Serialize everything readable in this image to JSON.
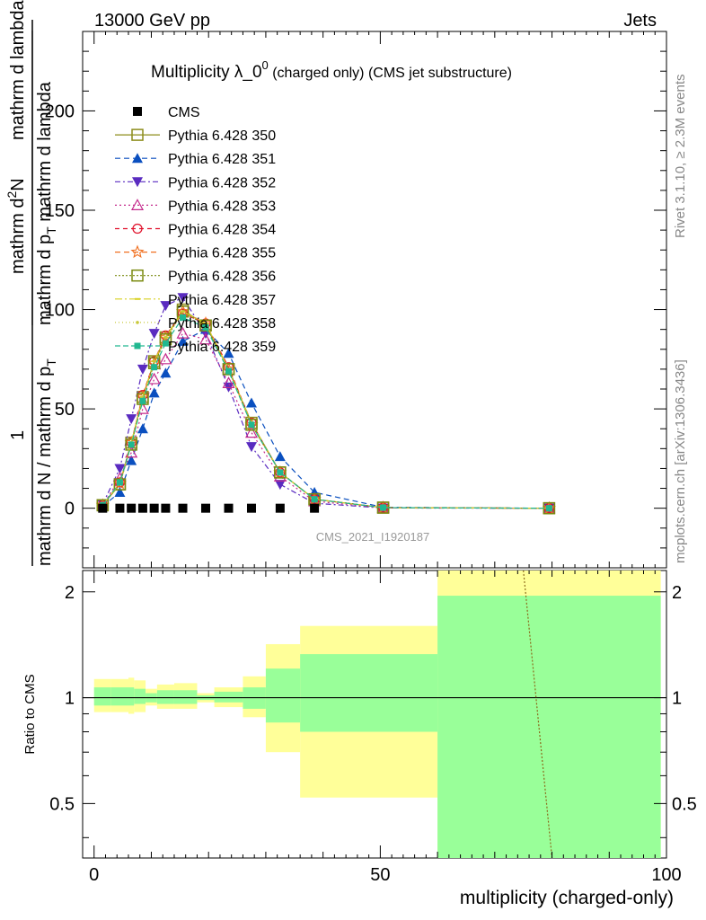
{
  "header": {
    "energy": "13000 GeV pp",
    "category": "Jets"
  },
  "title_main": "Multiplicity λ_0",
  "title_sup": "0",
  "title_suffix": " (charged only) (CMS jet substructure)",
  "side_texts": {
    "rivet": "Rivet 3.1.10, ≥ 2.3M events",
    "mcplots": "mcplots.cern.ch [arXiv:1306.3436]"
  },
  "watermark": "CMS_2021_I1920187",
  "ylabel_top": {
    "one": "1",
    "num_left": "mathrm d N / mathrm d p",
    "num_sub": "T",
    "num_right": "mathrm d lambda",
    "big_num": "mathrm d",
    "big_sup": "2",
    "big_N": "N",
    "big_den": "mathrm d p",
    "big_den_sub": "T",
    "big_den_right": "mathrm d lambda"
  },
  "ylabel_ratio": "Ratio to CMS",
  "xlabel": "multiplicity (charged-only)",
  "colors": {
    "cms": "#000000",
    "p350": "#8c8c1a",
    "p351": "#0a4fbf",
    "p352": "#5a2bc0",
    "p353": "#c42a8c",
    "p354": "#e0102a",
    "p355": "#f07020",
    "p356": "#7a8a10",
    "p357": "#d8d020",
    "p358": "#c8c83a",
    "p359": "#20b890",
    "band_outer": "#ffff99",
    "band_inner": "#99ff99"
  },
  "chart_data": {
    "type": "line",
    "main_panel": {
      "xlim": [
        -2,
        100
      ],
      "ylim": [
        -30,
        240
      ],
      "yticks": [
        0,
        50,
        100,
        150,
        200
      ],
      "x": [
        1.5,
        4.5,
        6.5,
        8.5,
        10.5,
        12.5,
        15.5,
        19.5,
        23.5,
        27.5,
        32.5,
        38.5,
        50.5,
        79.5
      ],
      "series": [
        {
          "name": "CMS",
          "marker": "square-filled",
          "values": [
            0,
            0,
            0,
            0,
            0,
            0,
            0,
            0,
            0,
            0,
            0,
            0,
            0,
            0
          ]
        },
        {
          "name": "Pythia 6.428 350",
          "marker": "square-open",
          "values": [
            1.5,
            12,
            33,
            56,
            74,
            86,
            100,
            92,
            70,
            43,
            18,
            4.5,
            0.3,
            0
          ]
        },
        {
          "name": "Pythia 6.428 351",
          "marker": "triangle-up",
          "values": [
            1,
            8,
            24,
            40,
            58,
            68,
            84,
            90,
            78,
            53,
            26,
            8,
            0.5,
            0
          ]
        },
        {
          "name": "Pythia 6.428 352",
          "marker": "triangle-down",
          "values": [
            2,
            20,
            45,
            70,
            88,
            102,
            106,
            88,
            61,
            31,
            12,
            2.5,
            0.1,
            0
          ]
        },
        {
          "name": "Pythia 6.428 353",
          "marker": "triangle-open",
          "values": [
            1.5,
            15,
            28,
            50,
            65,
            75,
            88,
            85,
            63,
            38,
            16,
            3.5,
            0.2,
            0
          ]
        },
        {
          "name": "Pythia 6.428 354",
          "marker": "circle-open",
          "values": [
            1.5,
            13,
            33,
            57,
            74,
            87,
            98,
            93,
            71,
            43,
            18,
            4.5,
            0.3,
            0
          ]
        },
        {
          "name": "Pythia 6.428 355",
          "marker": "star-open",
          "values": [
            1.5,
            12.5,
            33,
            56,
            73,
            86,
            99,
            93,
            70,
            42,
            18,
            4.5,
            0.3,
            0
          ]
        },
        {
          "name": "Pythia 6.428 356",
          "marker": "square-open-dot",
          "values": [
            1.5,
            12,
            32,
            55,
            73,
            85,
            99,
            92,
            70,
            42,
            18,
            4.5,
            0.3,
            0
          ]
        },
        {
          "name": "Pythia 6.428 357",
          "marker": "dash",
          "values": [
            1.5,
            12.5,
            33,
            56,
            74,
            86,
            99,
            93,
            70,
            43,
            18,
            4.5,
            0.3,
            0
          ]
        },
        {
          "name": "Pythia 6.428 358",
          "marker": "dot",
          "values": [
            1.5,
            12.5,
            33,
            56,
            74,
            86,
            99,
            93,
            70,
            43,
            18,
            4.5,
            0.3,
            0
          ]
        },
        {
          "name": "Pythia 6.428 359",
          "marker": "square-small",
          "values": [
            1.5,
            13,
            32,
            54,
            71,
            83,
            96,
            91,
            69,
            42,
            18,
            4.5,
            0.3,
            0
          ]
        }
      ]
    },
    "ratio_panel": {
      "xlim": [
        -2,
        100
      ],
      "ylim": [
        0.35,
        2.3
      ],
      "yticks": [
        0.5,
        1,
        2
      ],
      "xticks": [
        0,
        50,
        100
      ],
      "bins": [
        {
          "lo": 0,
          "hi": 3,
          "outer": [
            0.91,
            1.13
          ],
          "inner": [
            0.95,
            1.07
          ]
        },
        {
          "lo": 3,
          "hi": 6,
          "outer": [
            0.91,
            1.13
          ],
          "inner": [
            0.95,
            1.07
          ]
        },
        {
          "lo": 6,
          "hi": 7,
          "outer": [
            0.9,
            1.14
          ],
          "inner": [
            0.95,
            1.07
          ]
        },
        {
          "lo": 7,
          "hi": 9,
          "outer": [
            0.91,
            1.12
          ],
          "inner": [
            0.96,
            1.06
          ]
        },
        {
          "lo": 9,
          "hi": 11,
          "outer": [
            0.95,
            1.06
          ],
          "inner": [
            0.97,
            1.03
          ]
        },
        {
          "lo": 11,
          "hi": 14,
          "outer": [
            0.93,
            1.09
          ],
          "inner": [
            0.96,
            1.05
          ]
        },
        {
          "lo": 14,
          "hi": 18,
          "outer": [
            0.93,
            1.1
          ],
          "inner": [
            0.96,
            1.05
          ]
        },
        {
          "lo": 18,
          "hi": 21,
          "outer": [
            0.97,
            1.03
          ],
          "inner": [
            0.985,
            1.015
          ]
        },
        {
          "lo": 21,
          "hi": 26,
          "outer": [
            0.94,
            1.07
          ],
          "inner": [
            0.97,
            1.04
          ]
        },
        {
          "lo": 26,
          "hi": 30,
          "outer": [
            0.88,
            1.15
          ],
          "inner": [
            0.93,
            1.07
          ]
        },
        {
          "lo": 30,
          "hi": 36,
          "outer": [
            0.7,
            1.42
          ],
          "inner": [
            0.85,
            1.21
          ]
        },
        {
          "lo": 36,
          "hi": 60,
          "outer": [
            0.52,
            1.6
          ],
          "inner": [
            0.8,
            1.33
          ]
        },
        {
          "lo": 60,
          "hi": 99,
          "outer": [
            0.35,
            2.3
          ],
          "inner": [
            0.35,
            1.95
          ]
        }
      ],
      "reference": 1,
      "model_line": {
        "x": [
          75,
          80
        ],
        "y": [
          2.3,
          0.35
        ]
      }
    }
  }
}
